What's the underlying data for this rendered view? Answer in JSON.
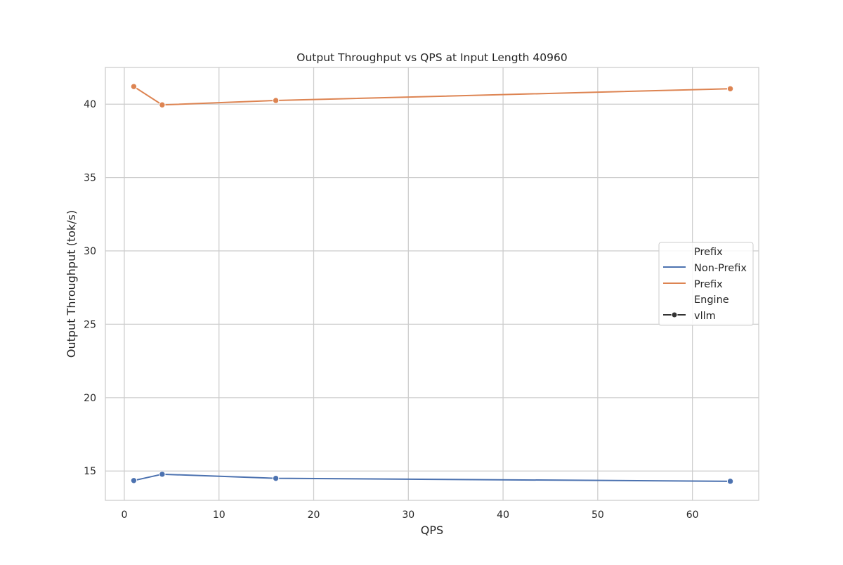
{
  "chart_data": {
    "type": "line",
    "title": "Output Throughput vs QPS at Input Length 40960",
    "xlabel": "QPS",
    "ylabel": "Output Throughput (tok/s)",
    "xlim": [
      -2,
      67
    ],
    "ylim": [
      13.0,
      42.5
    ],
    "xticks": [
      0,
      10,
      20,
      30,
      40,
      50,
      60
    ],
    "yticks": [
      15,
      20,
      25,
      30,
      35,
      40
    ],
    "grid": true,
    "series": [
      {
        "name": "Non-Prefix",
        "color": "#4c72b0",
        "x": [
          1,
          4,
          16,
          64
        ],
        "y": [
          14.35,
          14.78,
          14.5,
          14.3
        ]
      },
      {
        "name": "Prefix",
        "color": "#dd8452",
        "x": [
          1,
          4,
          16,
          64
        ],
        "y": [
          41.2,
          39.95,
          40.25,
          41.05
        ]
      }
    ],
    "legend": {
      "position": "right",
      "hue_title": "Prefix",
      "style_title": "Engine",
      "style_items": [
        {
          "name": "vllm",
          "marker": "o",
          "color": "#333333"
        }
      ]
    }
  }
}
